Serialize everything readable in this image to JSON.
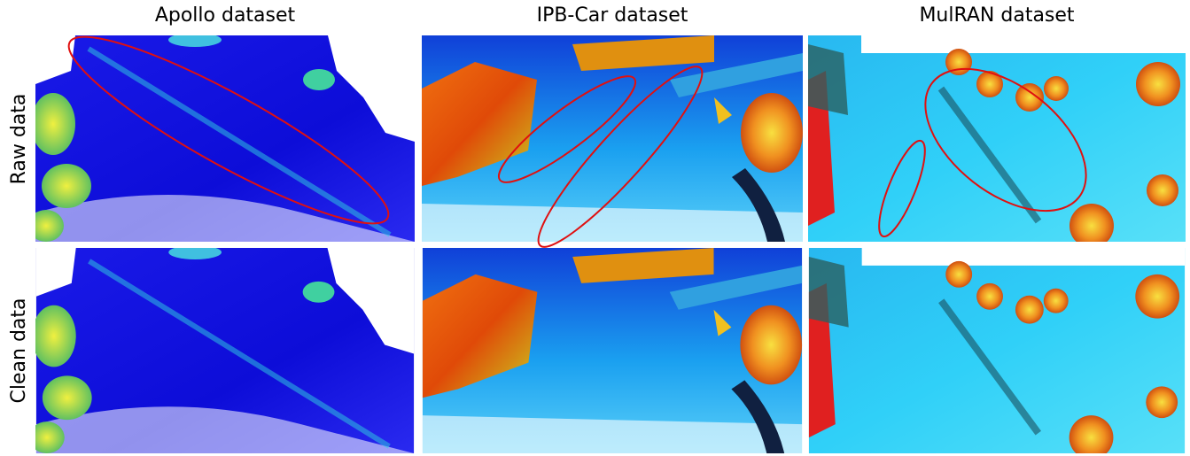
{
  "columns": [
    {
      "title": "Apollo dataset"
    },
    {
      "title": "IPB-Car dataset"
    },
    {
      "title": "MulRAN dataset"
    }
  ],
  "rows": [
    {
      "label": "Raw data"
    },
    {
      "label": "Clean data"
    }
  ]
}
